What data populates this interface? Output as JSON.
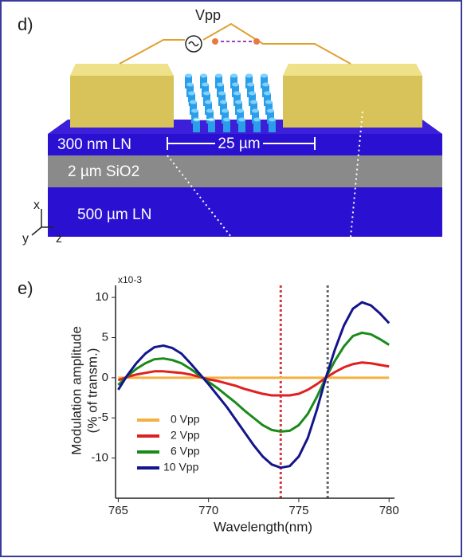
{
  "diagram": {
    "panel_label": "d)",
    "voltage": "Vpp",
    "width": "25 µm",
    "layers": [
      "300 nm LN",
      "2 µm SiO2",
      "500 µm LN"
    ],
    "axes": [
      "x",
      "y",
      "z"
    ]
  },
  "chart_data": {
    "type": "line",
    "panel_label": "e)",
    "y_multiplier": "x10-3",
    "x_label": "Wavelength(nm)",
    "y_label": [
      "Modulation amplitude",
      "(% of transm.)"
    ],
    "xlim": [
      764.85,
      780.3
    ],
    "ylim": [
      -15,
      11.5
    ],
    "xticks": [
      765,
      770,
      775,
      780
    ],
    "yticks": [
      10,
      5,
      0,
      -5,
      -10
    ],
    "vlines": [
      {
        "x": 774,
        "color": "#d23a3a"
      },
      {
        "x": 776.6,
        "color": "#666666"
      }
    ],
    "x": [
      765,
      765.5,
      766,
      766.5,
      767,
      767.5,
      768,
      768.5,
      769,
      769.5,
      770,
      770.5,
      771,
      771.5,
      772,
      772.5,
      773,
      773.5,
      774,
      774.5,
      775,
      775.5,
      776,
      776.5,
      777,
      777.5,
      778,
      778.5,
      779,
      779.5,
      780
    ],
    "series": [
      {
        "name": "0 Vpp",
        "color": "#f5b041",
        "values": [
          0,
          0,
          0,
          0,
          0,
          0,
          0,
          0,
          0,
          0,
          0,
          0,
          0,
          0,
          0,
          0,
          0,
          0,
          0,
          0,
          0,
          0,
          0,
          0,
          0,
          0,
          0,
          0,
          0,
          0,
          0
        ]
      },
      {
        "name": "2 Vpp",
        "color": "#e02020",
        "values": [
          -0.3,
          0.1,
          0.4,
          0.6,
          0.8,
          0.8,
          0.7,
          0.6,
          0.4,
          0.1,
          -0.2,
          -0.4,
          -0.7,
          -1.0,
          -1.4,
          -1.7,
          -2.0,
          -2.2,
          -2.2,
          -2.2,
          -2.0,
          -1.5,
          -0.8,
          0,
          0.7,
          1.3,
          1.7,
          1.9,
          1.8,
          1.6,
          1.4
        ]
      },
      {
        "name": "6 Vpp",
        "color": "#1a8a1a",
        "values": [
          -0.9,
          0.2,
          1.1,
          1.8,
          2.3,
          2.4,
          2.2,
          1.8,
          1.1,
          0.3,
          -0.5,
          -1.3,
          -2.2,
          -3.1,
          -4.1,
          -5.0,
          -5.9,
          -6.5,
          -6.7,
          -6.6,
          -5.9,
          -4.5,
          -2.4,
          0,
          2.1,
          3.9,
          5.2,
          5.6,
          5.4,
          4.8,
          4.1
        ]
      },
      {
        "name": "10 Vpp",
        "color": "#14148c",
        "values": [
          -1.5,
          0.3,
          1.8,
          3.0,
          3.8,
          4.0,
          3.7,
          3.0,
          1.8,
          0.5,
          -0.8,
          -2.2,
          -3.6,
          -5.2,
          -6.8,
          -8.4,
          -9.8,
          -10.8,
          -11.2,
          -11.0,
          -9.8,
          -7.5,
          -4.0,
          0,
          3.5,
          6.5,
          8.6,
          9.4,
          9.0,
          8.0,
          6.8
        ]
      }
    ]
  }
}
